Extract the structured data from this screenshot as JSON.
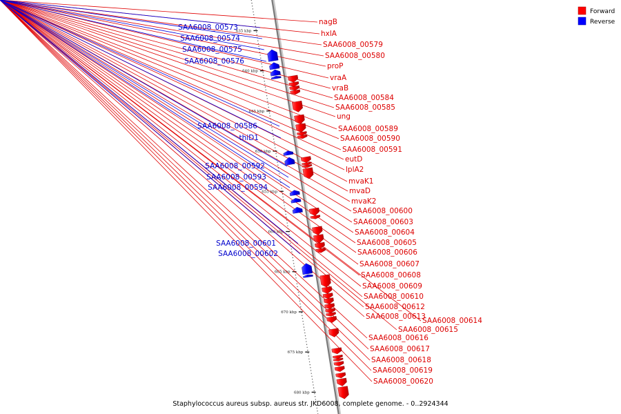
{
  "caption": "Staphylococcus aureus subsp. aureus str. JKD6008, complete genome. - 0..2924344",
  "legend": {
    "items": [
      {
        "label": "Forward",
        "color": "#ff0000"
      },
      {
        "label": "Reverse",
        "color": "#0000ff"
      }
    ]
  },
  "scale": {
    "unit": "kbp",
    "ticks": [
      {
        "label": "635 kbp",
        "kbp": 635
      },
      {
        "label": "640 kbp",
        "kbp": 640
      },
      {
        "label": "645 kbp",
        "kbp": 645
      },
      {
        "label": "650 kbp",
        "kbp": 650
      },
      {
        "label": "655 kbp",
        "kbp": 655
      },
      {
        "label": "660 kbp",
        "kbp": 660
      },
      {
        "label": "665 kbp",
        "kbp": 665
      },
      {
        "label": "670 kbp",
        "kbp": 670
      },
      {
        "label": "675 kbp",
        "kbp": 675
      },
      {
        "label": "680 kbp",
        "kbp": 680
      }
    ]
  },
  "genes": {
    "forward": [
      {
        "name": "nagB",
        "start_kbp": 640.8,
        "end_kbp": 641.6
      },
      {
        "name": "hxlA",
        "start_kbp": 641.6,
        "end_kbp": 642.1
      },
      {
        "name": "SAA6008_00579",
        "start_kbp": 642.1,
        "end_kbp": 642.6
      },
      {
        "name": "SAA6008_00580",
        "start_kbp": 642.6,
        "end_kbp": 643.1
      },
      {
        "name": "proP",
        "start_kbp": 644.0,
        "end_kbp": 645.3
      },
      {
        "name": "vraA",
        "start_kbp": 645.7,
        "end_kbp": 646.8
      },
      {
        "name": "vraB",
        "start_kbp": 646.8,
        "end_kbp": 647.8
      },
      {
        "name": "SAA6008_00584",
        "start_kbp": 647.8,
        "end_kbp": 648.2
      },
      {
        "name": "SAA6008_00585",
        "start_kbp": 648.2,
        "end_kbp": 648.6
      },
      {
        "name": "ung",
        "start_kbp": 650.9,
        "end_kbp": 651.6
      },
      {
        "name": "SAA6008_00589",
        "start_kbp": 651.6,
        "end_kbp": 651.9
      },
      {
        "name": "SAA6008_00590",
        "start_kbp": 651.9,
        "end_kbp": 652.2
      },
      {
        "name": "SAA6008_00591",
        "start_kbp": 652.3,
        "end_kbp": 653.6
      },
      {
        "name": "eutD",
        "start_kbp": 657.3,
        "end_kbp": 658.2
      },
      {
        "name": "lplA2",
        "start_kbp": 658.2,
        "end_kbp": 658.6
      },
      {
        "name": "mvaK1",
        "start_kbp": 659.6,
        "end_kbp": 660.6
      },
      {
        "name": "mvaD",
        "start_kbp": 660.6,
        "end_kbp": 661.6
      },
      {
        "name": "mvaK2",
        "start_kbp": 661.6,
        "end_kbp": 662.3
      },
      {
        "name": "SAA6008_00600",
        "start_kbp": 662.3,
        "end_kbp": 662.8
      },
      {
        "name": "SAA6008_00603",
        "start_kbp": 665.6,
        "end_kbp": 667.1
      },
      {
        "name": "SAA6008_00604",
        "start_kbp": 667.1,
        "end_kbp": 667.9
      },
      {
        "name": "SAA6008_00605",
        "start_kbp": 667.9,
        "end_kbp": 668.5
      },
      {
        "name": "SAA6008_00606",
        "start_kbp": 668.5,
        "end_kbp": 669.2
      },
      {
        "name": "SAA6008_00607",
        "start_kbp": 669.2,
        "end_kbp": 669.8
      },
      {
        "name": "SAA6008_00608",
        "start_kbp": 669.8,
        "end_kbp": 670.3
      },
      {
        "name": "SAA6008_00609",
        "start_kbp": 670.3,
        "end_kbp": 670.7
      },
      {
        "name": "SAA6008_00610",
        "start_kbp": 670.8,
        "end_kbp": 671.5
      },
      {
        "name": "SAA6008_00612",
        "start_kbp": 672.3,
        "end_kbp": 673.3
      },
      {
        "name": "SAA6008_00613",
        "start_kbp": 674.7,
        "end_kbp": 675.4
      },
      {
        "name": "SAA6008_00614",
        "start_kbp": 675.6,
        "end_kbp": 676.0
      },
      {
        "name": "SAA6008_00615",
        "start_kbp": 676.0,
        "end_kbp": 676.3
      },
      {
        "name": "SAA6008_00616",
        "start_kbp": 676.4,
        "end_kbp": 676.9
      },
      {
        "name": "SAA6008_00617",
        "start_kbp": 677.0,
        "end_kbp": 677.6
      },
      {
        "name": "SAA6008_00618",
        "start_kbp": 677.8,
        "end_kbp": 678.4
      },
      {
        "name": "SAA6008_00619",
        "start_kbp": 678.5,
        "end_kbp": 679.4
      },
      {
        "name": "SAA6008_00620",
        "start_kbp": 679.5,
        "end_kbp": 681.0
      }
    ],
    "reverse": [
      {
        "name": "SAA6008_00573",
        "start_kbp": 637.2,
        "end_kbp": 638.6
      },
      {
        "name": "SAA6008_00574",
        "start_kbp": 638.8,
        "end_kbp": 639.6
      },
      {
        "name": "SAA6008_00575",
        "start_kbp": 639.7,
        "end_kbp": 640.4
      },
      {
        "name": "SAA6008_00576",
        "start_kbp": 640.5,
        "end_kbp": 640.8
      },
      {
        "name": "SAA6008_00586",
        "start_kbp": 649.8,
        "end_kbp": 650.3
      },
      {
        "name": "thiD1",
        "start_kbp": 650.6,
        "end_kbp": 651.5
      },
      {
        "name": "SAA6008_00592",
        "start_kbp": 654.7,
        "end_kbp": 655.3
      },
      {
        "name": "SAA6008_00593",
        "start_kbp": 655.7,
        "end_kbp": 656.2
      },
      {
        "name": "SAA6008_00594",
        "start_kbp": 656.8,
        "end_kbp": 657.5
      },
      {
        "name": "SAA6008_00601",
        "start_kbp": 663.8,
        "end_kbp": 665.1
      },
      {
        "name": "SAA6008_00602",
        "start_kbp": 665.2,
        "end_kbp": 665.5
      }
    ]
  }
}
